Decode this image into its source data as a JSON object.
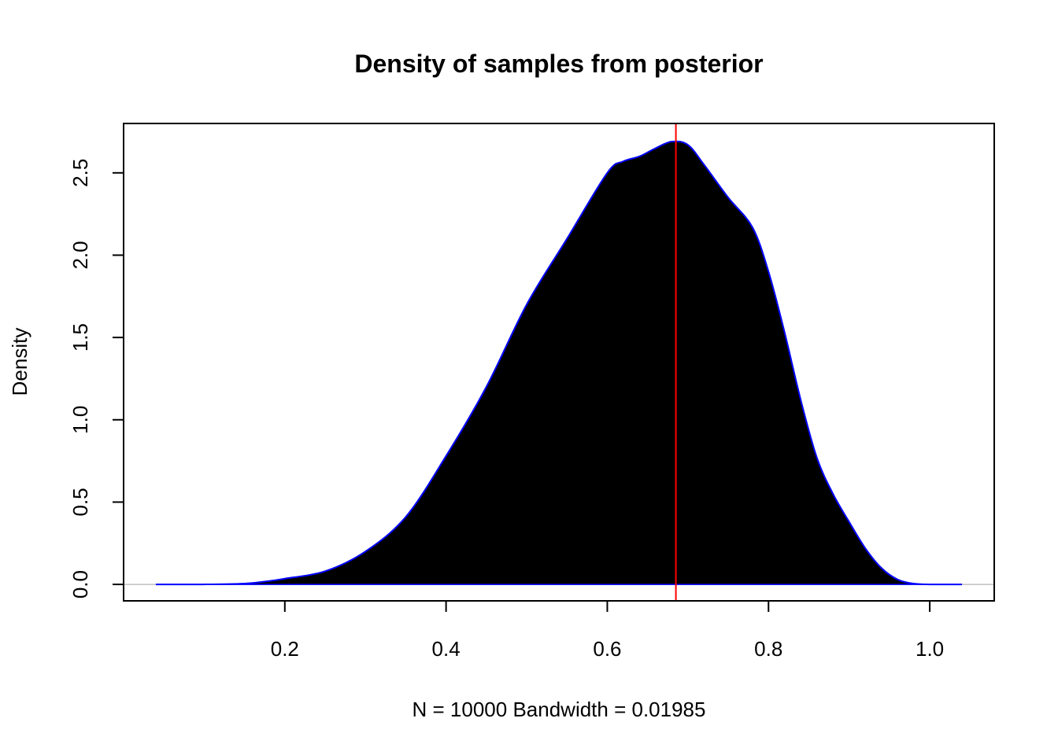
{
  "chart_data": {
    "type": "area",
    "title": "Density of samples from posterior",
    "xlabel": "N = 10000   Bandwidth = 0.01985",
    "ylabel": "Density",
    "xlim": [
      0.0,
      1.08
    ],
    "ylim": [
      -0.1,
      2.8
    ],
    "x_ticks": [
      0.2,
      0.4,
      0.6,
      0.8,
      1.0
    ],
    "x_tick_labels": [
      "0.2",
      "0.4",
      "0.6",
      "0.8",
      "1.0"
    ],
    "y_ticks": [
      0.0,
      0.5,
      1.0,
      1.5,
      2.0,
      2.5
    ],
    "y_tick_labels": [
      "0.0",
      "0.5",
      "1.0",
      "1.5",
      "2.0",
      "2.5"
    ],
    "grid": false,
    "fill_color": "#000000",
    "line_color": "#0000ff",
    "baseline_color": "#bebebe",
    "vline": {
      "x": 0.6851,
      "color": "#ff0000"
    },
    "series": [
      {
        "x": [
          0.04,
          0.1,
          0.15,
          0.18,
          0.2,
          0.25,
          0.3,
          0.35,
          0.4,
          0.45,
          0.5,
          0.55,
          0.6,
          0.62,
          0.64,
          0.66,
          0.68,
          0.7,
          0.72,
          0.75,
          0.78,
          0.8,
          0.82,
          0.84,
          0.86,
          0.88,
          0.9,
          0.92,
          0.94,
          0.96,
          0.98,
          1.0,
          1.04
        ],
        "y": [
          0.0,
          0.0,
          0.005,
          0.02,
          0.035,
          0.08,
          0.2,
          0.41,
          0.78,
          1.2,
          1.7,
          2.1,
          2.5,
          2.57,
          2.6,
          2.65,
          2.69,
          2.67,
          2.55,
          2.35,
          2.17,
          1.9,
          1.53,
          1.12,
          0.77,
          0.55,
          0.38,
          0.22,
          0.1,
          0.03,
          0.005,
          0.0,
          0.0
        ]
      }
    ]
  }
}
